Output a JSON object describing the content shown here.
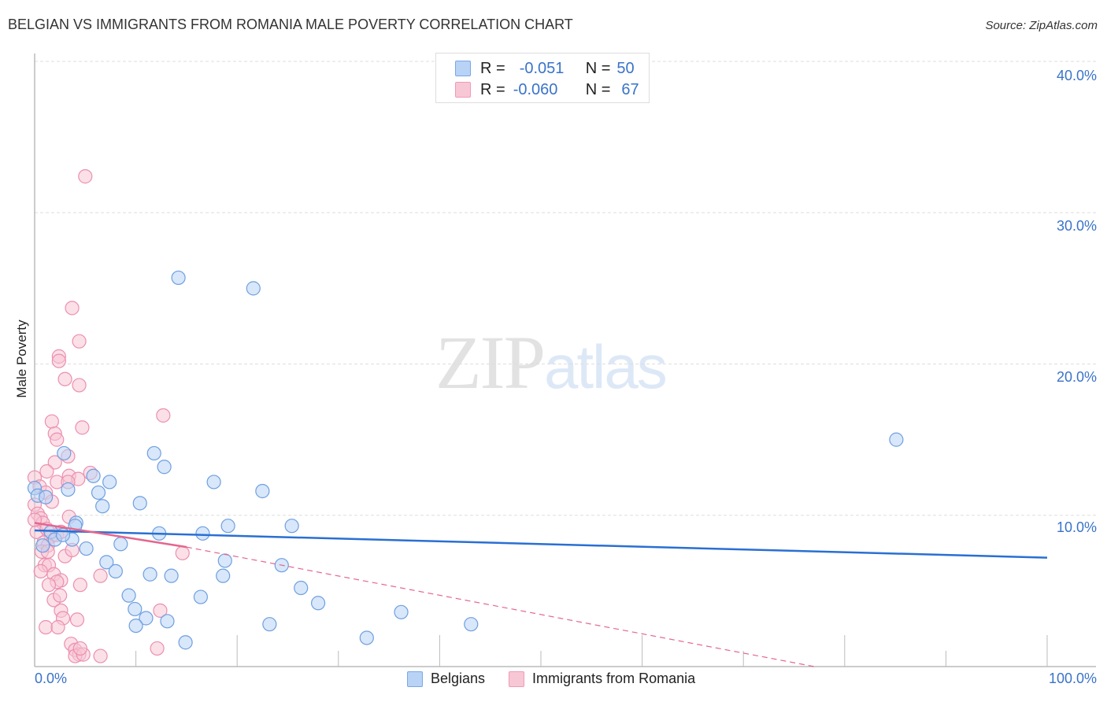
{
  "header": {
    "title": "BELGIAN VS IMMIGRANTS FROM ROMANIA MALE POVERTY CORRELATION CHART",
    "source": "Source: ZipAtlas.com"
  },
  "legend_box": {
    "rows": [
      {
        "r_label": "R =",
        "r_value": "-0.051",
        "n_label": "N =",
        "n_value": "50"
      },
      {
        "r_label": "R =",
        "r_value": "-0.060",
        "n_label": "N =",
        "n_value": "67"
      }
    ]
  },
  "axes": {
    "y_label": "Male Poverty",
    "y_ticks": [
      "40.0%",
      "30.0%",
      "20.0%",
      "10.0%"
    ],
    "x_min_label": "0.0%",
    "x_max_label": "100.0%"
  },
  "bottom_legend": {
    "items": [
      "Belgians",
      "Immigrants from Romania"
    ]
  },
  "watermark": {
    "zip": "ZIP",
    "atlas": "atlas"
  },
  "colors": {
    "blue_fill": "#b8d3f5",
    "blue_stroke": "#6f9fe0",
    "blue_line": "#2a6fd3",
    "pink_fill": "#f8c7d6",
    "pink_stroke": "#ec8fae",
    "pink_line": "#e4668f",
    "tick_text": "#3a73c9",
    "grid": "#dddddd"
  },
  "chart_data": {
    "type": "scatter",
    "title": "BELGIAN VS IMMIGRANTS FROM ROMANIA MALE POVERTY CORRELATION CHART",
    "xlabel": "",
    "ylabel": "Male Poverty",
    "xlim": [
      0,
      100
    ],
    "ylim": [
      0,
      40
    ],
    "x_tick_labels": [
      "0.0%",
      "100.0%"
    ],
    "y_tick_labels": [
      "10.0%",
      "20.0%",
      "30.0%",
      "40.0%"
    ],
    "grid": "horizontal dashed",
    "legend_position": "top-center (stats) and bottom-center (series)",
    "series": [
      {
        "name": "Belgians",
        "R": -0.051,
        "N": 50,
        "trend": {
          "x": [
            0,
            100
          ],
          "y": [
            9.0,
            7.2
          ]
        },
        "points": [
          [
            14.2,
            25.7
          ],
          [
            21.6,
            25.0
          ],
          [
            85.1,
            15.0
          ],
          [
            2.9,
            14.1
          ],
          [
            11.8,
            14.1
          ],
          [
            12.8,
            13.2
          ],
          [
            5.8,
            12.6
          ],
          [
            7.4,
            12.2
          ],
          [
            17.7,
            12.2
          ],
          [
            22.5,
            11.6
          ],
          [
            3.3,
            11.7
          ],
          [
            6.3,
            11.5
          ],
          [
            10.4,
            10.8
          ],
          [
            6.7,
            10.6
          ],
          [
            4.1,
            9.5
          ],
          [
            19.1,
            9.3
          ],
          [
            25.4,
            9.3
          ],
          [
            16.6,
            8.8
          ],
          [
            12.3,
            8.8
          ],
          [
            3.7,
            8.4
          ],
          [
            5.1,
            7.8
          ],
          [
            8.5,
            8.1
          ],
          [
            18.8,
            7.0
          ],
          [
            7.1,
            6.9
          ],
          [
            24.4,
            6.7
          ],
          [
            8.0,
            6.3
          ],
          [
            11.4,
            6.1
          ],
          [
            13.5,
            6.0
          ],
          [
            18.6,
            6.0
          ],
          [
            26.3,
            5.2
          ],
          [
            16.4,
            4.6
          ],
          [
            9.3,
            4.7
          ],
          [
            28.0,
            4.2
          ],
          [
            9.9,
            3.8
          ],
          [
            36.2,
            3.6
          ],
          [
            11.0,
            3.2
          ],
          [
            13.1,
            3.0
          ],
          [
            23.2,
            2.8
          ],
          [
            10.0,
            2.7
          ],
          [
            43.1,
            2.8
          ],
          [
            32.8,
            1.9
          ],
          [
            14.9,
            1.6
          ],
          [
            0.0,
            11.8
          ],
          [
            0.3,
            11.3
          ],
          [
            1.1,
            11.2
          ],
          [
            1.6,
            8.9
          ],
          [
            2.0,
            8.4
          ],
          [
            2.8,
            8.7
          ],
          [
            0.8,
            8.0
          ],
          [
            4.0,
            9.3
          ]
        ]
      },
      {
        "name": "Immigrants from Romania",
        "R": -0.06,
        "N": 67,
        "trend": {
          "x": [
            0,
            15
          ],
          "y": [
            9.5,
            7.9
          ]
        },
        "trend_extrapolated": {
          "x": [
            15,
            77
          ],
          "y": [
            7.9,
            0
          ]
        },
        "points": [
          [
            5.0,
            32.4
          ],
          [
            3.7,
            23.7
          ],
          [
            4.4,
            21.5
          ],
          [
            2.4,
            20.5
          ],
          [
            2.4,
            20.2
          ],
          [
            3.0,
            19.0
          ],
          [
            4.4,
            18.6
          ],
          [
            12.7,
            16.6
          ],
          [
            1.7,
            16.2
          ],
          [
            4.7,
            15.8
          ],
          [
            2.0,
            15.4
          ],
          [
            2.2,
            15.0
          ],
          [
            3.3,
            13.9
          ],
          [
            2.0,
            13.5
          ],
          [
            3.4,
            12.6
          ],
          [
            4.3,
            12.4
          ],
          [
            2.2,
            12.2
          ],
          [
            0.0,
            12.5
          ],
          [
            0.5,
            11.9
          ],
          [
            1.1,
            11.5
          ],
          [
            1.7,
            10.9
          ],
          [
            0.0,
            10.7
          ],
          [
            0.3,
            10.1
          ],
          [
            0.6,
            9.8
          ],
          [
            0.8,
            9.5
          ],
          [
            0.2,
            8.9
          ],
          [
            1.2,
            9.1
          ],
          [
            1.6,
            8.6
          ],
          [
            2.2,
            8.7
          ],
          [
            2.6,
            8.9
          ],
          [
            3.4,
            9.9
          ],
          [
            0.9,
            8.2
          ],
          [
            1.3,
            8.0
          ],
          [
            3.0,
            7.3
          ],
          [
            0.7,
            7.6
          ],
          [
            1.0,
            6.7
          ],
          [
            1.4,
            6.7
          ],
          [
            0.6,
            6.3
          ],
          [
            1.9,
            6.1
          ],
          [
            2.6,
            5.7
          ],
          [
            2.2,
            5.6
          ],
          [
            1.4,
            5.4
          ],
          [
            4.5,
            5.4
          ],
          [
            6.5,
            6.0
          ],
          [
            14.6,
            7.5
          ],
          [
            1.9,
            4.4
          ],
          [
            2.5,
            4.7
          ],
          [
            2.6,
            3.7
          ],
          [
            2.8,
            3.2
          ],
          [
            1.1,
            2.6
          ],
          [
            2.3,
            2.6
          ],
          [
            4.2,
            3.1
          ],
          [
            3.6,
            1.5
          ],
          [
            4.0,
            1.1
          ],
          [
            4.4,
            0.8
          ],
          [
            4.0,
            0.7
          ],
          [
            4.8,
            0.8
          ],
          [
            6.5,
            0.7
          ],
          [
            4.5,
            1.2
          ],
          [
            12.1,
            1.2
          ],
          [
            12.4,
            3.7
          ],
          [
            5.5,
            12.8
          ],
          [
            3.3,
            12.2
          ],
          [
            1.2,
            12.9
          ],
          [
            3.7,
            7.7
          ],
          [
            1.3,
            7.6
          ],
          [
            0.0,
            9.7
          ]
        ]
      }
    ]
  }
}
